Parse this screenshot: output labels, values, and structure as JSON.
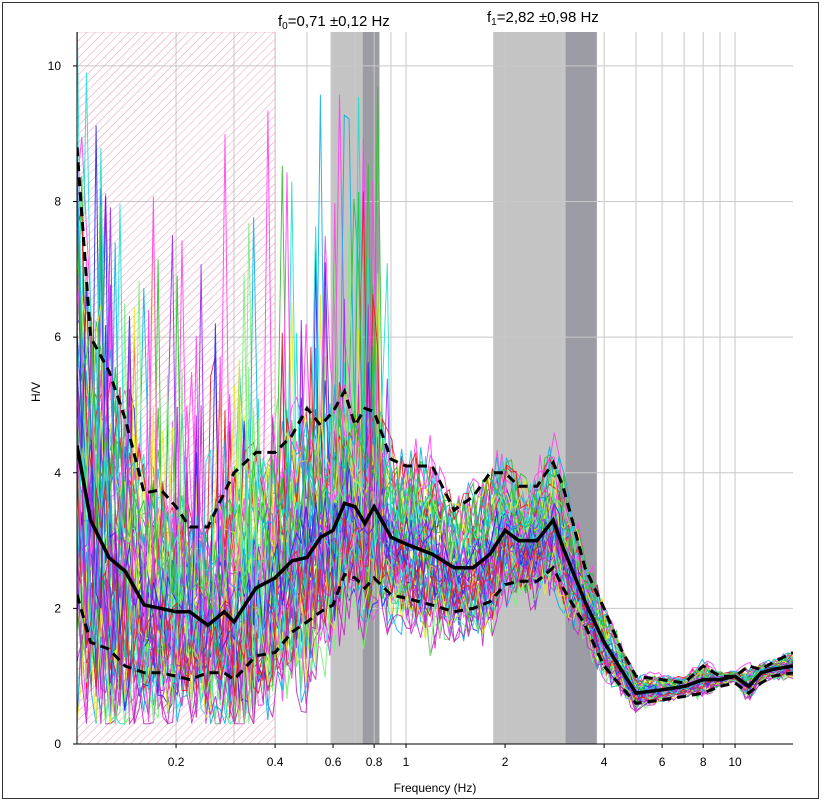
{
  "chart_data": {
    "type": "line",
    "title": "",
    "xlabel": "Frequency (Hz)",
    "ylabel": "H/V",
    "x_scale": "log",
    "xlim": [
      0.1,
      15
    ],
    "ylim": [
      0,
      10.5
    ],
    "x_ticks": [
      {
        "value": 0.2,
        "label": "0.2"
      },
      {
        "value": 0.4,
        "label": "0.4"
      },
      {
        "value": 0.6,
        "label": "0.6"
      },
      {
        "value": 0.8,
        "label": "0.8"
      },
      {
        "value": 1,
        "label": "1"
      },
      {
        "value": 2,
        "label": "2"
      },
      {
        "value": 4,
        "label": "4"
      },
      {
        "value": 6,
        "label": "6"
      },
      {
        "value": 8,
        "label": "8"
      },
      {
        "value": 10,
        "label": "10"
      }
    ],
    "y_ticks": [
      {
        "value": 0,
        "label": "0"
      },
      {
        "value": 2,
        "label": "2"
      },
      {
        "value": 4,
        "label": "4"
      },
      {
        "value": 6,
        "label": "6"
      },
      {
        "value": 8,
        "label": "8"
      },
      {
        "value": 10,
        "label": "10"
      }
    ],
    "grid": true,
    "peaks": [
      {
        "name_main": "f",
        "name_sub": "0",
        "text": "=0,71 ±0,12 Hz",
        "f": 0.71,
        "sigma": 0.12,
        "range": [
          0.59,
          0.83
        ]
      },
      {
        "name_main": "f",
        "name_sub": "1",
        "text": "=2,82 ±0,98 Hz",
        "f": 2.82,
        "sigma": 0.98,
        "range": [
          1.84,
          3.8
        ]
      }
    ],
    "excluded_band": {
      "x_range": [
        0.1,
        0.4
      ],
      "y_range": [
        0,
        10.5
      ]
    },
    "mean_curve": {
      "x": [
        0.1,
        0.11,
        0.125,
        0.14,
        0.16,
        0.18,
        0.2,
        0.22,
        0.25,
        0.28,
        0.3,
        0.35,
        0.4,
        0.45,
        0.5,
        0.55,
        0.6,
        0.65,
        0.7,
        0.75,
        0.8,
        0.9,
        1.0,
        1.2,
        1.4,
        1.6,
        1.8,
        2.0,
        2.2,
        2.5,
        2.8,
        3.0,
        3.5,
        4.0,
        4.5,
        5.0,
        6.0,
        7.0,
        8.0,
        9.0,
        10.0,
        11.0,
        12.0,
        13.0,
        15.0
      ],
      "y": [
        4.4,
        3.3,
        2.75,
        2.55,
        2.05,
        2.0,
        1.95,
        1.95,
        1.75,
        1.95,
        1.8,
        2.3,
        2.45,
        2.7,
        2.75,
        3.05,
        3.15,
        3.55,
        3.5,
        3.25,
        3.5,
        3.05,
        2.95,
        2.8,
        2.6,
        2.6,
        2.8,
        3.15,
        3.0,
        3.0,
        3.3,
        2.9,
        2.1,
        1.5,
        1.1,
        0.75,
        0.8,
        0.85,
        0.95,
        0.95,
        1.0,
        0.85,
        1.05,
        1.1,
        1.15
      ]
    },
    "upper_curve": {
      "x": [
        0.1,
        0.11,
        0.125,
        0.14,
        0.16,
        0.18,
        0.2,
        0.22,
        0.25,
        0.28,
        0.3,
        0.35,
        0.4,
        0.45,
        0.5,
        0.55,
        0.6,
        0.65,
        0.7,
        0.75,
        0.8,
        0.9,
        1.0,
        1.2,
        1.4,
        1.6,
        1.8,
        2.0,
        2.2,
        2.5,
        2.8,
        3.0,
        3.5,
        4.0,
        4.5,
        5.0,
        6.0,
        7.0,
        8.0,
        9.0,
        10.0,
        11.0,
        12.0,
        13.0,
        15.0
      ],
      "y": [
        8.8,
        6.0,
        5.5,
        4.8,
        3.7,
        3.75,
        3.5,
        3.2,
        3.2,
        3.7,
        4.0,
        4.3,
        4.3,
        4.55,
        4.95,
        4.7,
        4.9,
        5.2,
        4.7,
        4.95,
        4.9,
        4.2,
        4.1,
        4.1,
        3.45,
        3.65,
        4.0,
        4.0,
        3.8,
        3.8,
        4.15,
        3.8,
        2.6,
        2.0,
        1.4,
        1.0,
        0.95,
        0.9,
        1.15,
        1.0,
        1.0,
        1.15,
        1.1,
        1.2,
        1.35
      ]
    },
    "lower_curve": {
      "x": [
        0.1,
        0.11,
        0.125,
        0.14,
        0.16,
        0.18,
        0.2,
        0.22,
        0.25,
        0.28,
        0.3,
        0.35,
        0.4,
        0.45,
        0.5,
        0.55,
        0.6,
        0.65,
        0.7,
        0.75,
        0.8,
        0.9,
        1.0,
        1.2,
        1.4,
        1.6,
        1.8,
        2.0,
        2.2,
        2.5,
        2.8,
        3.0,
        3.5,
        4.0,
        4.5,
        5.0,
        6.0,
        7.0,
        8.0,
        9.0,
        10.0,
        11.0,
        12.0,
        13.0,
        15.0
      ],
      "y": [
        2.2,
        1.5,
        1.4,
        1.15,
        1.05,
        1.05,
        1.0,
        0.95,
        1.05,
        1.05,
        0.95,
        1.3,
        1.35,
        1.65,
        1.8,
        1.95,
        2.05,
        2.5,
        2.45,
        2.3,
        2.45,
        2.2,
        2.15,
        2.05,
        1.95,
        2.0,
        2.1,
        2.35,
        2.4,
        2.4,
        2.6,
        2.3,
        1.75,
        1.15,
        0.85,
        0.6,
        0.65,
        0.7,
        0.75,
        0.85,
        0.9,
        0.75,
        0.9,
        1.0,
        1.05
      ]
    },
    "window_count": 60,
    "window_palette": [
      "#e8e82a",
      "#ff44ee",
      "#9a2af0",
      "#2a2ae8",
      "#10b0e0",
      "#30c030",
      "#7af07a",
      "#20e0d0",
      "#e02020",
      "#c030c0"
    ],
    "colors": {
      "excluded_hatch": "#e89ab8",
      "peak_band_light": "#c4c4c4",
      "peak_band_dark": "#9c9ca4",
      "grid": "#c8c8c8",
      "mean": "#000000",
      "std": "#000000"
    }
  }
}
